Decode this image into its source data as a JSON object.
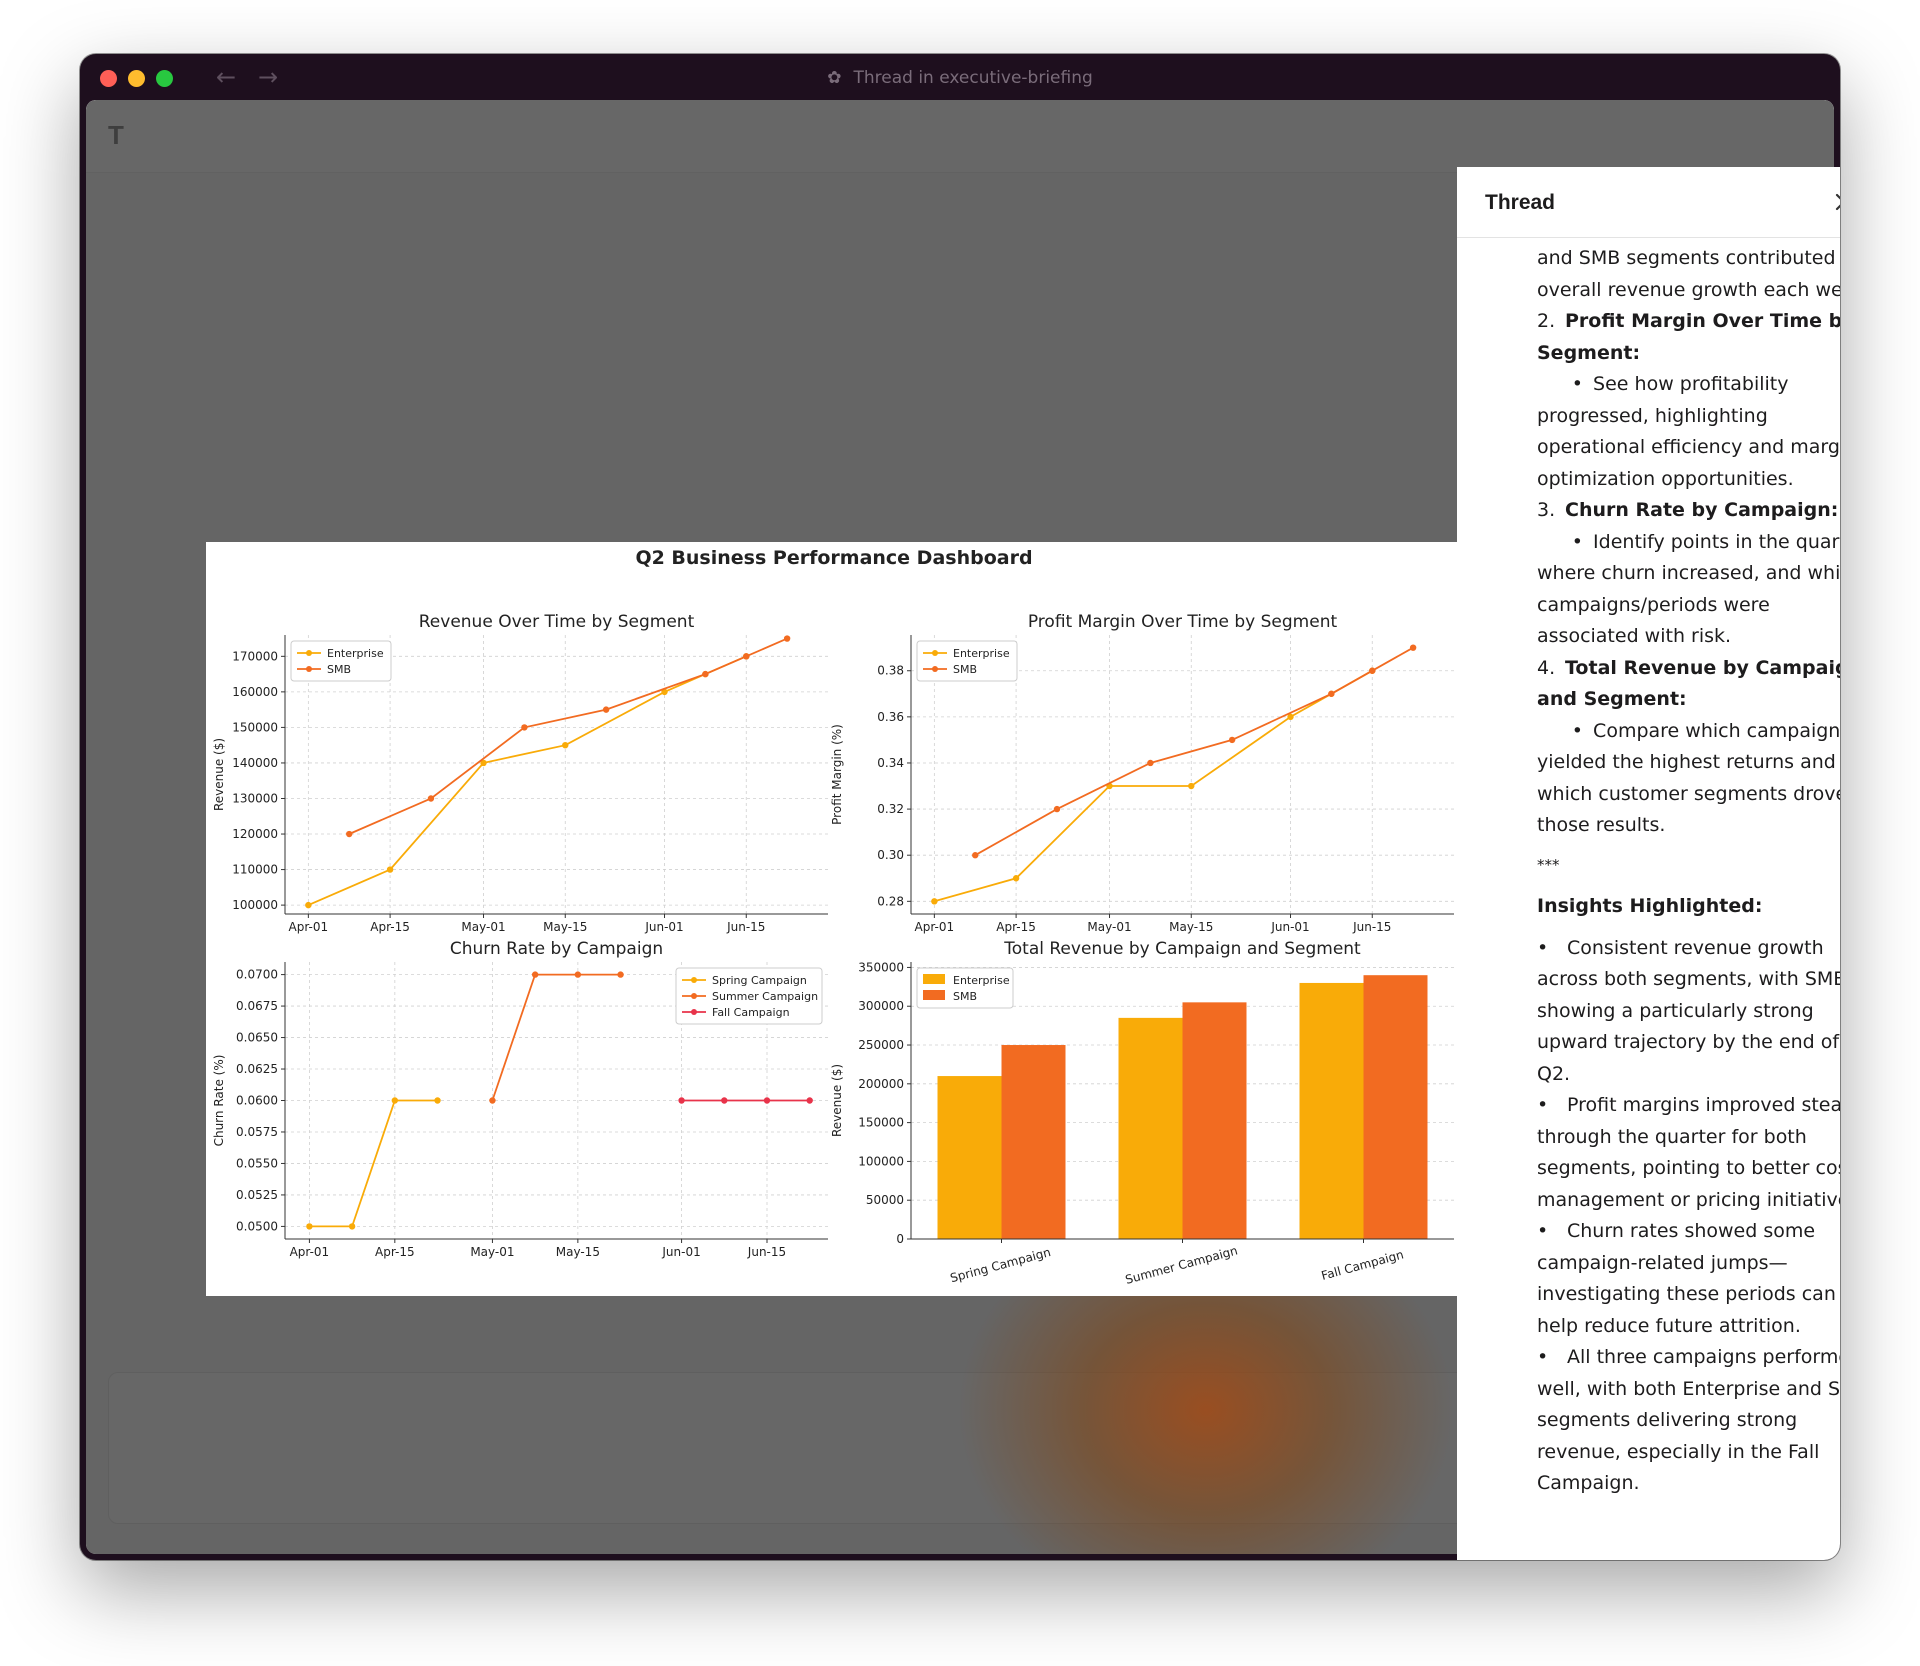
{
  "window": {
    "title": "Thread in executive-briefing",
    "back_icon": "arrow-left-icon",
    "forward_icon": "arrow-right-icon",
    "traffic_lights": [
      "#ff5f57",
      "#febc2e",
      "#28c840"
    ]
  },
  "app": {
    "header_initial": "T"
  },
  "thread": {
    "title": "Thread",
    "close_icon": "close-icon",
    "intro_continuation": "and SMB segments contributed to overall revenue growth each week.",
    "items": [
      {
        "number": "2.",
        "title": "Profit Margin Over Time by Segment:",
        "bullet": "See how profitability progressed, highlighting operational efficiency and margin optimization opportunities."
      },
      {
        "number": "3.",
        "title": "Churn Rate by Campaign:",
        "bullet": "Identify points in the quarter where churn increased, and which campaigns/periods were associated with risk."
      },
      {
        "number": "4.",
        "title": "Total Revenue by Campaign and Segment:",
        "bullet": "Compare which campaigns yielded the highest returns and which customer segments drove those results."
      }
    ],
    "separator": "***",
    "insights_title": "Insights Highlighted:",
    "insights": [
      "Consistent revenue growth across both segments, with SMB showing a particularly strong upward trajectory by the end of Q2.",
      "Profit margins improved steadily through the quarter for both segments, pointing to better cost management or pricing initiatives.",
      "Churn rates showed some campaign-related jumps—investigating these periods can help reduce future attrition.",
      "All three campaigns performed well, with both Enterprise and SMB segments delivering strong revenue, especially in the Fall Campaign."
    ]
  },
  "colors": {
    "enterprise": "#f9ab08",
    "smb": "#f26b21",
    "fall": "#e8334a"
  },
  "dashboard": {
    "title": "Q2 Business Performance Dashboard"
  },
  "chart_data": [
    {
      "type": "line",
      "title": "Revenue Over Time by Segment",
      "xlabel": "",
      "ylabel": "Revenue ($)",
      "x_ticks": [
        "Apr-01",
        "Apr-15",
        "May-01",
        "May-15",
        "Jun-01",
        "Jun-15"
      ],
      "x_tick_days": [
        0,
        14,
        30,
        44,
        61,
        75
      ],
      "y_ticks": [
        100000,
        110000,
        120000,
        130000,
        140000,
        150000,
        160000,
        170000
      ],
      "xlim": [
        -4,
        89
      ],
      "ylim": [
        97500,
        176000
      ],
      "grid": true,
      "legend": "top-left",
      "series": [
        {
          "name": "Enterprise",
          "x": [
            0,
            14,
            30,
            44,
            61,
            68,
            75
          ],
          "values": [
            100000,
            110000,
            140000,
            145000,
            160000,
            165000,
            170000
          ]
        },
        {
          "name": "SMB",
          "x": [
            7,
            21,
            37,
            51,
            68,
            75,
            82
          ],
          "values": [
            120000,
            130000,
            150000,
            155000,
            165000,
            170000,
            175000
          ]
        }
      ]
    },
    {
      "type": "line",
      "title": "Profit Margin Over Time by Segment",
      "xlabel": "",
      "ylabel": "Profit Margin (%)",
      "x_ticks": [
        "Apr-01",
        "Apr-15",
        "May-01",
        "May-15",
        "Jun-01",
        "Jun-15"
      ],
      "x_tick_days": [
        0,
        14,
        30,
        44,
        61,
        75
      ],
      "y_ticks": [
        0.28,
        0.3,
        0.32,
        0.34,
        0.36,
        0.38
      ],
      "xlim": [
        -4,
        89
      ],
      "ylim": [
        0.2745,
        0.3955
      ],
      "grid": true,
      "legend": "top-left",
      "series": [
        {
          "name": "Enterprise",
          "x": [
            0,
            14,
            30,
            44,
            61,
            68,
            75
          ],
          "values": [
            0.28,
            0.29,
            0.33,
            0.33,
            0.36,
            0.37,
            0.38
          ]
        },
        {
          "name": "SMB",
          "x": [
            7,
            21,
            37,
            51,
            68,
            75,
            82
          ],
          "values": [
            0.3,
            0.32,
            0.34,
            0.35,
            0.37,
            0.38,
            0.39
          ]
        }
      ]
    },
    {
      "type": "line",
      "title": "Churn Rate by Campaign",
      "xlabel": "",
      "ylabel": "Churn Rate (%)",
      "x_ticks": [
        "Apr-01",
        "Apr-15",
        "May-01",
        "May-15",
        "Jun-01",
        "Jun-15"
      ],
      "x_tick_days": [
        0,
        14,
        30,
        44,
        61,
        75
      ],
      "y_ticks": [
        0.05,
        0.0525,
        0.055,
        0.0575,
        0.06,
        0.0625,
        0.065,
        0.0675,
        0.07
      ],
      "xlim": [
        -4,
        85
      ],
      "ylim": [
        0.049,
        0.071
      ],
      "grid": true,
      "legend": "top-right",
      "series": [
        {
          "name": "Spring Campaign",
          "x": [
            0,
            7,
            14,
            21
          ],
          "values": [
            0.05,
            0.05,
            0.06,
            0.06
          ]
        },
        {
          "name": "Summer Campaign",
          "x": [
            30,
            37,
            44,
            51
          ],
          "values": [
            0.06,
            0.07,
            0.07,
            0.07
          ]
        },
        {
          "name": "Fall Campaign",
          "x": [
            61,
            68,
            75,
            82
          ],
          "values": [
            0.06,
            0.06,
            0.06,
            0.06
          ]
        }
      ]
    },
    {
      "type": "bar",
      "title": "Total Revenue by Campaign and Segment",
      "xlabel": "",
      "ylabel": "Revenue ($)",
      "categories": [
        "Spring Campaign",
        "Summer Campaign",
        "Fall Campaign"
      ],
      "y_ticks": [
        0,
        50000,
        100000,
        150000,
        200000,
        250000,
        300000,
        350000
      ],
      "ylim": [
        0,
        357000
      ],
      "grid": true,
      "legend": "top-left",
      "series": [
        {
          "name": "Enterprise",
          "values": [
            210000,
            285000,
            330000
          ]
        },
        {
          "name": "SMB",
          "values": [
            250000,
            305000,
            340000
          ]
        }
      ]
    }
  ]
}
